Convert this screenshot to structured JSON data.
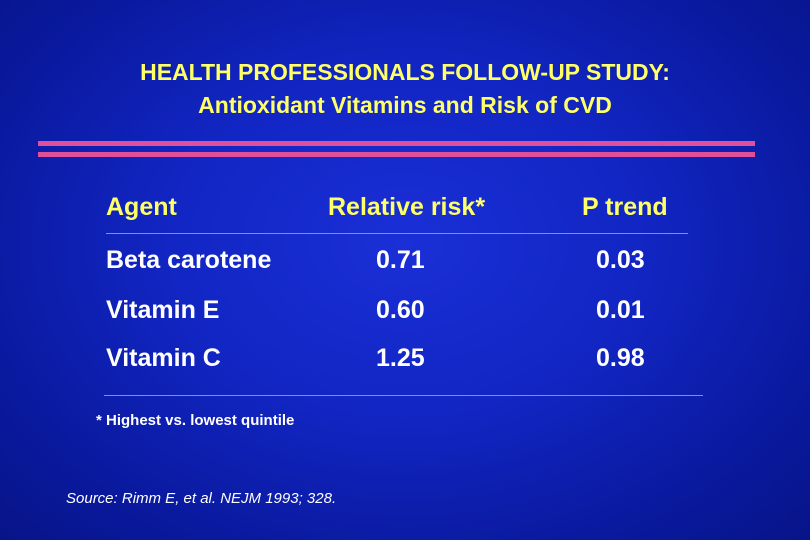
{
  "title": {
    "line1": "HEALTH PROFESSIONALS FOLLOW-UP STUDY:",
    "line2": "Antioxidant Vitamins and Risk of CVD"
  },
  "table": {
    "headers": [
      "Agent",
      "Relative risk*",
      "P trend"
    ],
    "rows": [
      [
        "Beta carotene",
        "0.71",
        "0.03"
      ],
      [
        "Vitamin E",
        "0.60",
        "0.01"
      ],
      [
        "Vitamin C",
        "1.25",
        "0.98"
      ]
    ]
  },
  "footnote": "* Highest vs. lowest quintile",
  "source": "Source:  Rimm E, et al.  NEJM 1993; 328.",
  "colors": {
    "background": "#1226c4",
    "title": "#ffff66",
    "accent_rule": "#e0509a",
    "text": "#ffffff"
  }
}
